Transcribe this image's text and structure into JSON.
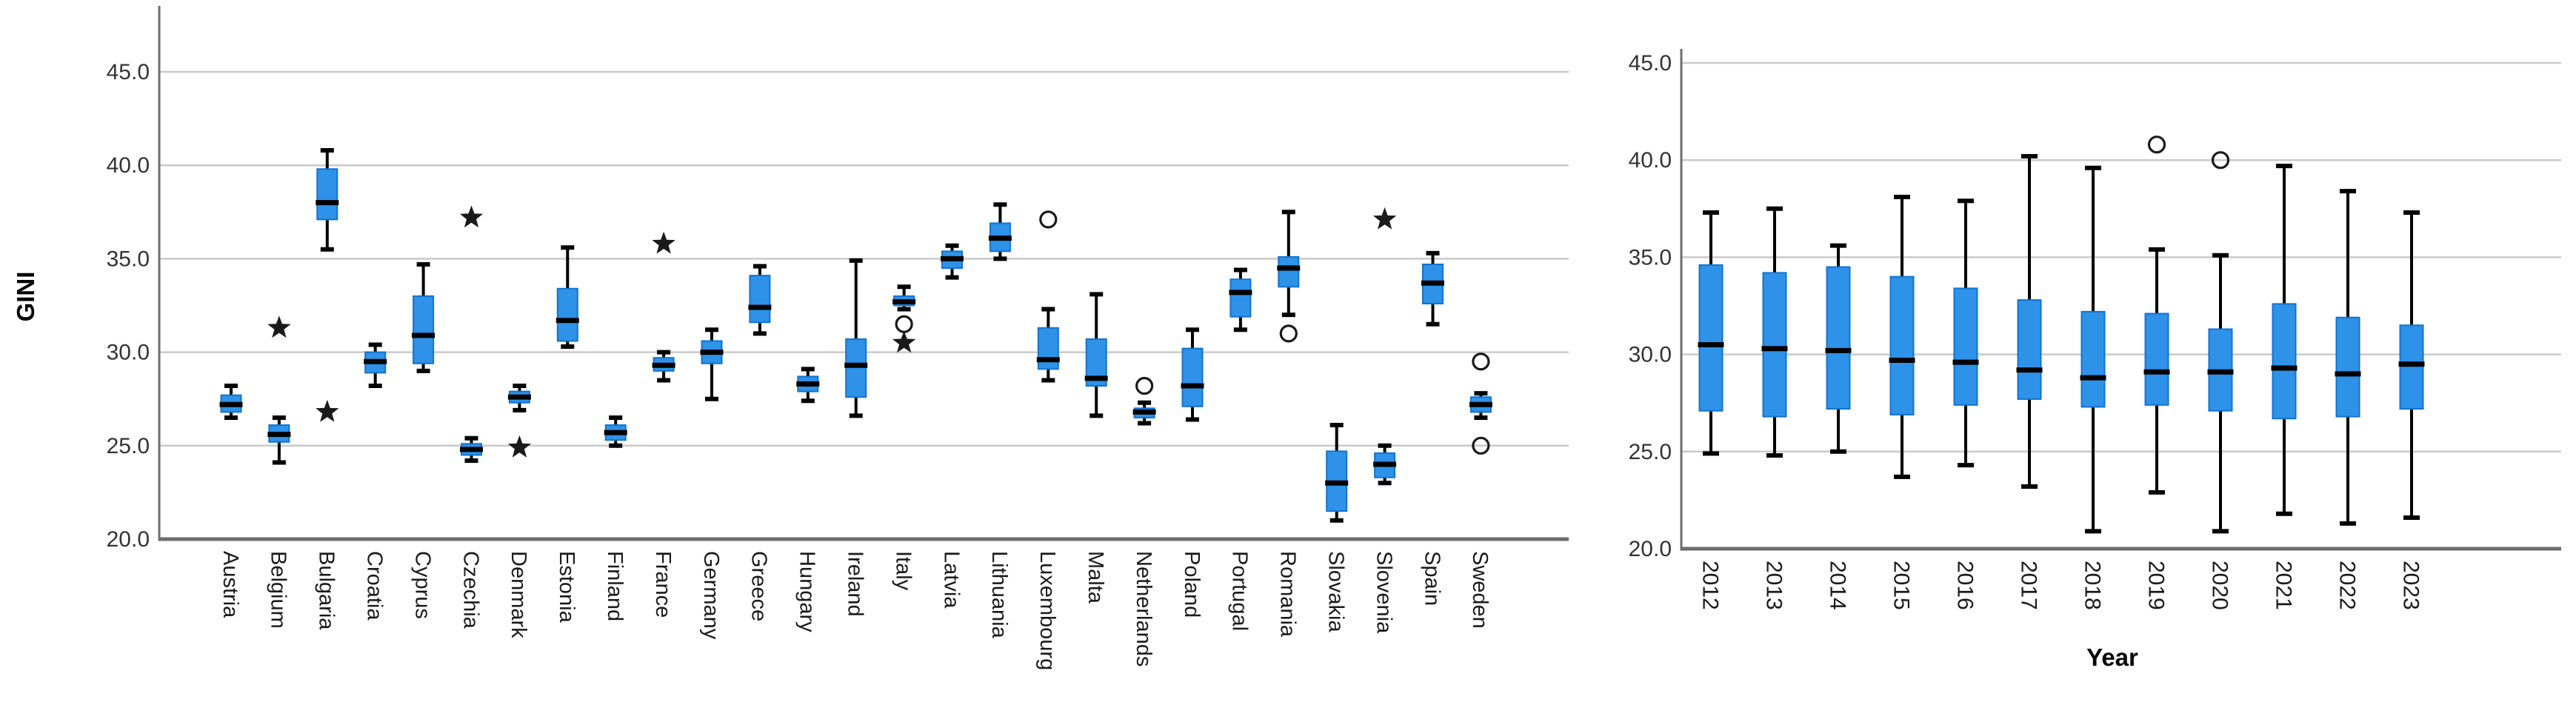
{
  "figure": {
    "background": "#ffffff",
    "gridline_color": "#c9c9c9",
    "axis_color": "#6e6e6e",
    "box_fill": "#2e92e9",
    "box_stroke": "#1173d0",
    "median_color": "#000000",
    "whisker_color": "#000000",
    "outlier_color": "#1a1a1a",
    "tick_label_color": "#333333",
    "category_label_color": "#1a1a1a",
    "title_color": "#000000"
  },
  "chart_data": [
    {
      "type": "boxplot",
      "id": "gini-by-country",
      "title": "",
      "ylabel": "GINI",
      "xlabel": "",
      "ylim": [
        20.0,
        47.6
      ],
      "yticks": [
        45.0,
        40.0,
        35.0,
        30.0,
        25.0,
        20.0
      ],
      "grid": "horizontal",
      "legend": "none",
      "categories": [
        "Austria",
        "Belgium",
        "Bulgaria",
        "Croatia",
        "Cyprus",
        "Czechia",
        "Denmark",
        "Estonia",
        "Finland",
        "France",
        "Germany",
        "Greece",
        "Hungary",
        "Ireland",
        "Italy",
        "Latvia",
        "Lithuania",
        "Luxembourg",
        "Malta",
        "Netherlands",
        "Poland",
        "Portugal",
        "Romania",
        "Slovakia",
        "Slovenia",
        "Spain",
        "Sweden"
      ],
      "series": [
        {
          "name": "Austria",
          "low": 26.5,
          "q1": 26.8,
          "median": 27.2,
          "q3": 27.7,
          "high": 28.2,
          "outliers": []
        },
        {
          "name": "Belgium",
          "low": 24.1,
          "q1": 25.2,
          "median": 25.6,
          "q3": 26.1,
          "high": 26.5,
          "outliers": [
            {
              "value": 31.3,
              "type": "star"
            }
          ]
        },
        {
          "name": "Bulgaria",
          "low": 35.5,
          "q1": 37.1,
          "median": 38.0,
          "q3": 39.8,
          "high": 40.8,
          "outliers": [
            {
              "value": 26.8,
              "type": "star"
            }
          ]
        },
        {
          "name": "Croatia",
          "low": 28.2,
          "q1": 28.9,
          "median": 29.5,
          "q3": 30.0,
          "high": 30.4,
          "outliers": []
        },
        {
          "name": "Cyprus",
          "low": 29.0,
          "q1": 29.4,
          "median": 30.9,
          "q3": 33.0,
          "high": 34.7,
          "outliers": []
        },
        {
          "name": "Czechia",
          "low": 24.2,
          "q1": 24.5,
          "median": 24.8,
          "q3": 25.1,
          "high": 25.4,
          "outliers": [
            {
              "value": 37.2,
              "type": "star"
            }
          ]
        },
        {
          "name": "Denmark",
          "low": 26.9,
          "q1": 27.3,
          "median": 27.6,
          "q3": 27.9,
          "high": 28.2,
          "outliers": [
            {
              "value": 24.9,
              "type": "star"
            }
          ]
        },
        {
          "name": "Estonia",
          "low": 30.3,
          "q1": 30.6,
          "median": 31.7,
          "q3": 33.4,
          "high": 35.6,
          "outliers": []
        },
        {
          "name": "Finland",
          "low": 25.0,
          "q1": 25.3,
          "median": 25.7,
          "q3": 26.1,
          "high": 26.5,
          "outliers": []
        },
        {
          "name": "France",
          "low": 28.5,
          "q1": 29.0,
          "median": 29.3,
          "q3": 29.7,
          "high": 30.0,
          "outliers": [
            {
              "value": 35.8,
              "type": "star"
            }
          ]
        },
        {
          "name": "Germany",
          "low": 27.5,
          "q1": 29.4,
          "median": 30.0,
          "q3": 30.6,
          "high": 31.2,
          "outliers": []
        },
        {
          "name": "Greece",
          "low": 31.0,
          "q1": 31.6,
          "median": 32.4,
          "q3": 34.1,
          "high": 34.6,
          "outliers": []
        },
        {
          "name": "Hungary",
          "low": 27.4,
          "q1": 27.9,
          "median": 28.3,
          "q3": 28.7,
          "high": 29.1,
          "outliers": []
        },
        {
          "name": "Ireland",
          "low": 26.6,
          "q1": 27.6,
          "median": 29.3,
          "q3": 30.7,
          "high": 34.9,
          "outliers": []
        },
        {
          "name": "Italy",
          "low": 32.3,
          "q1": 32.5,
          "median": 32.7,
          "q3": 33.0,
          "high": 33.5,
          "outliers": [
            {
              "value": 31.5,
              "type": "circle"
            },
            {
              "value": 30.5,
              "type": "star"
            }
          ]
        },
        {
          "name": "Latvia",
          "low": 34.0,
          "q1": 34.5,
          "median": 35.0,
          "q3": 35.4,
          "high": 35.7,
          "outliers": []
        },
        {
          "name": "Lithuania",
          "low": 35.0,
          "q1": 35.4,
          "median": 36.1,
          "q3": 36.9,
          "high": 37.9,
          "outliers": []
        },
        {
          "name": "Luxembourg",
          "low": 28.5,
          "q1": 29.1,
          "median": 29.6,
          "q3": 31.3,
          "high": 32.3,
          "outliers": [
            {
              "value": 37.1,
              "type": "circle"
            }
          ]
        },
        {
          "name": "Malta",
          "low": 26.6,
          "q1": 28.2,
          "median": 28.6,
          "q3": 30.7,
          "high": 33.1,
          "outliers": []
        },
        {
          "name": "Netherlands",
          "low": 26.2,
          "q1": 26.5,
          "median": 26.8,
          "q3": 27.0,
          "high": 27.3,
          "outliers": [
            {
              "value": 28.2,
              "type": "circle"
            }
          ]
        },
        {
          "name": "Poland",
          "low": 26.4,
          "q1": 27.1,
          "median": 28.2,
          "q3": 30.2,
          "high": 31.2,
          "outliers": []
        },
        {
          "name": "Portugal",
          "low": 31.2,
          "q1": 31.9,
          "median": 33.2,
          "q3": 33.9,
          "high": 34.4,
          "outliers": []
        },
        {
          "name": "Romania",
          "low": 32.0,
          "q1": 33.5,
          "median": 34.5,
          "q3": 35.1,
          "high": 37.5,
          "outliers": [
            {
              "value": 31.0,
              "type": "circle"
            }
          ]
        },
        {
          "name": "Slovakia",
          "low": 21.0,
          "q1": 21.5,
          "median": 23.0,
          "q3": 24.7,
          "high": 26.1,
          "outliers": []
        },
        {
          "name": "Slovenia",
          "low": 23.0,
          "q1": 23.3,
          "median": 24.0,
          "q3": 24.6,
          "high": 25.0,
          "outliers": [
            {
              "value": 37.1,
              "type": "star"
            }
          ]
        },
        {
          "name": "Spain",
          "low": 31.5,
          "q1": 32.6,
          "median": 33.7,
          "q3": 34.7,
          "high": 35.3,
          "outliers": []
        },
        {
          "name": "Sweden",
          "low": 26.5,
          "q1": 26.8,
          "median": 27.2,
          "q3": 27.6,
          "high": 27.8,
          "outliers": [
            {
              "value": 29.5,
              "type": "circle"
            },
            {
              "value": 25.0,
              "type": "circle"
            }
          ]
        }
      ]
    },
    {
      "type": "boxplot",
      "id": "gini-by-year",
      "title": "",
      "ylabel": "",
      "xlabel": "Year",
      "ylim": [
        20.0,
        47.6
      ],
      "yticks": [
        45.0,
        40.0,
        35.0,
        30.0,
        25.0,
        20.0
      ],
      "grid": "horizontal",
      "legend": "none",
      "categories": [
        "2012",
        "2013",
        "2014",
        "2015",
        "2016",
        "2017",
        "2018",
        "2019",
        "2020",
        "2021",
        "2022",
        "2023"
      ],
      "series": [
        {
          "name": "2012",
          "low": 24.9,
          "q1": 27.1,
          "median": 30.5,
          "q3": 34.6,
          "high": 37.3,
          "outliers": []
        },
        {
          "name": "2013",
          "low": 24.8,
          "q1": 26.8,
          "median": 30.3,
          "q3": 34.2,
          "high": 37.5,
          "outliers": []
        },
        {
          "name": "2014",
          "low": 25.0,
          "q1": 27.2,
          "median": 30.2,
          "q3": 34.5,
          "high": 35.6,
          "outliers": []
        },
        {
          "name": "2015",
          "low": 23.7,
          "q1": 26.9,
          "median": 29.7,
          "q3": 34.0,
          "high": 38.1,
          "outliers": []
        },
        {
          "name": "2016",
          "low": 24.3,
          "q1": 27.4,
          "median": 29.6,
          "q3": 33.4,
          "high": 37.9,
          "outliers": []
        },
        {
          "name": "2017",
          "low": 23.2,
          "q1": 27.7,
          "median": 29.2,
          "q3": 32.8,
          "high": 40.2,
          "outliers": []
        },
        {
          "name": "2018",
          "low": 20.9,
          "q1": 27.3,
          "median": 28.8,
          "q3": 32.2,
          "high": 39.6,
          "outliers": []
        },
        {
          "name": "2019",
          "low": 22.9,
          "q1": 27.4,
          "median": 29.1,
          "q3": 32.1,
          "high": 35.4,
          "outliers": [
            {
              "value": 40.8,
              "type": "circle"
            }
          ]
        },
        {
          "name": "2020",
          "low": 20.9,
          "q1": 27.1,
          "median": 29.1,
          "q3": 31.3,
          "high": 35.1,
          "outliers": [
            {
              "value": 40.0,
              "type": "circle"
            }
          ]
        },
        {
          "name": "2021",
          "low": 21.8,
          "q1": 26.7,
          "median": 29.3,
          "q3": 32.6,
          "high": 39.7,
          "outliers": []
        },
        {
          "name": "2022",
          "low": 21.3,
          "q1": 26.8,
          "median": 29.0,
          "q3": 31.9,
          "high": 38.4,
          "outliers": []
        },
        {
          "name": "2023",
          "low": 21.6,
          "q1": 27.2,
          "median": 29.5,
          "q3": 31.5,
          "high": 37.3,
          "outliers": []
        }
      ]
    }
  ]
}
